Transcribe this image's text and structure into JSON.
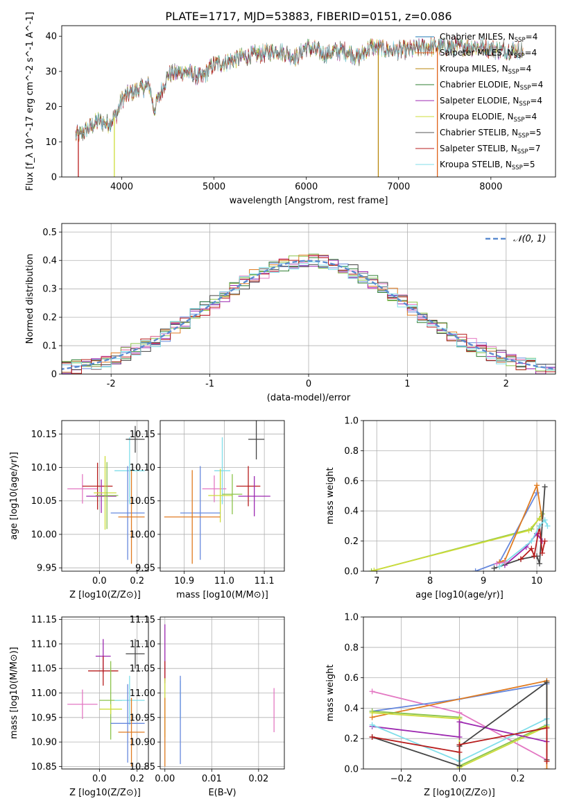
{
  "figure_title": "PLATE=1717, MJD=53883, FIBERID=0151, z=0.086",
  "colors": {
    "chabrier_miles": "#1f77b4",
    "salpeter_miles": "#e0611a",
    "kroupa_miles": "#b8860b",
    "chabrier_elodie": "#2e7d32",
    "salpeter_elodie": "#9c27b0",
    "kroupa_elodie": "#cddc39",
    "chabrier_stelib": "#555555",
    "salpeter_stelib": "#b71c1c",
    "kroupa_stelib": "#80deea",
    "pink": "#e377c2",
    "blue": "#6688dd",
    "orange": "#e07b20",
    "green": "#8bc34a",
    "gray": "#444444"
  },
  "chart_data": [
    {
      "type": "line",
      "panel": "spectrum",
      "xlabel": "wavelength [Angstrom, rest frame]",
      "ylabel": "Flux [f_λ 10^-17 erg cm^-2 s^-1 A^-1]",
      "xlim": [
        3350,
        8700
      ],
      "ylim": [
        0,
        43
      ],
      "xticks": [
        4000,
        5000,
        6000,
        7000,
        8000
      ],
      "yticks": [
        0,
        10,
        20,
        30,
        40
      ],
      "grid": false,
      "legend_position": "upper-right",
      "spectrum_envelope": {
        "x": [
          3550,
          3650,
          3750,
          3850,
          3950,
          4000,
          4100,
          4200,
          4300,
          4350,
          4500,
          4700,
          4862,
          5000,
          5175,
          5300,
          5500,
          5700,
          5893,
          6000,
          6200,
          6400,
          6563,
          6700,
          6900,
          7100,
          7300,
          7500,
          7700,
          7900,
          8100,
          8300
        ],
        "y": [
          12,
          14,
          16,
          15,
          18,
          22,
          24,
          25,
          26,
          19,
          29,
          30,
          28,
          32,
          33,
          34,
          35,
          36,
          34,
          37,
          35,
          36,
          34,
          37,
          36,
          36,
          37,
          37,
          37,
          37,
          36,
          36
        ]
      },
      "series": [
        {
          "name": "Chabrier MILES, N_SSP=4",
          "color_key": "chabrier_miles"
        },
        {
          "name": "Salpeter MILES, N_SSP=4",
          "color_key": "salpeter_miles"
        },
        {
          "name": "Kroupa MILES, N_SSP=4",
          "color_key": "kroupa_miles"
        },
        {
          "name": "Chabrier ELODIE, N_SSP=4",
          "color_key": "chabrier_elodie"
        },
        {
          "name": "Salpeter ELODIE, N_SSP=4",
          "color_key": "salpeter_elodie"
        },
        {
          "name": "Kroupa ELODIE, N_SSP=4",
          "color_key": "kroupa_elodie"
        },
        {
          "name": "Chabrier STELIB, N_SSP=5",
          "color_key": "chabrier_stelib"
        },
        {
          "name": "Salpeter STELIB, N_SSP=7",
          "color_key": "salpeter_stelib"
        },
        {
          "name": "Kroupa STELIB, N_SSP=5",
          "color_key": "kroupa_stelib"
        }
      ],
      "dropouts": [
        {
          "x": 3530,
          "color_key": "salpeter_stelib"
        },
        {
          "x": 3920,
          "color_key": "kroupa_elodie"
        },
        {
          "x": 6780,
          "color_key": "kroupa_miles"
        },
        {
          "x": 7420,
          "color_key": "salpeter_miles"
        }
      ]
    },
    {
      "type": "line",
      "panel": "residual histogram",
      "xlabel": "(data-model)/error",
      "ylabel": "Normed distribution",
      "xlim": [
        -2.5,
        2.5
      ],
      "ylim": [
        0,
        0.53
      ],
      "xticks": [
        -2,
        -1,
        0,
        1,
        2
      ],
      "yticks": [
        0.0,
        0.1,
        0.2,
        0.3,
        0.4,
        0.5
      ],
      "grid": true,
      "legend_position": "upper-right",
      "legend": "𝒩(0, 1)",
      "reference_curve": {
        "name": "N(0,1)",
        "mean": 0,
        "sigma": 1,
        "style": "dashed",
        "color": "#5b8bd0"
      },
      "histogram_bin_width": 0.1,
      "histogram_color_keys": [
        "blue",
        "orange",
        "pink",
        "chabrier_elodie",
        "salpeter_elodie",
        "green",
        "gray",
        "salpeter_stelib",
        "kroupa_stelib"
      ]
    },
    {
      "type": "scatter",
      "panel": "age vs Z",
      "xlabel": "Z [log10(Z/Z⊙)]",
      "ylabel": "age [log10(age/yr)]",
      "xlim": [
        -0.2,
        0.26
      ],
      "ylim": [
        9.945,
        10.17
      ],
      "xticks": [
        0.0,
        0.2
      ],
      "xtick_labels": [
        "0.0",
        "0.2"
      ],
      "yticks": [
        9.95,
        10.0,
        10.05,
        10.1,
        10.15
      ],
      "ytick_labels": [
        "9.95",
        "10.00",
        "10.05",
        "10.10",
        "10.15"
      ],
      "grid": true,
      "points": [
        {
          "x": -0.09,
          "xerr": 0.08,
          "y": 10.068,
          "yerr": 0.022,
          "color_key": "pink"
        },
        {
          "x": -0.01,
          "xerr": 0.08,
          "y": 10.072,
          "yerr": 0.035,
          "color_key": "salpeter_stelib"
        },
        {
          "x": 0.01,
          "xerr": 0.08,
          "y": 10.057,
          "yerr": 0.025,
          "color_key": "salpeter_elodie"
        },
        {
          "x": 0.03,
          "xerr": 0.06,
          "y": 10.062,
          "yerr": 0.055,
          "color_key": "kroupa_elodie"
        },
        {
          "x": 0.04,
          "xerr": 0.06,
          "y": 10.058,
          "yerr": 0.05,
          "color_key": "green"
        },
        {
          "x": 0.16,
          "xerr": 0.08,
          "y": 10.095,
          "yerr": 0.05,
          "color_key": "kroupa_stelib"
        },
        {
          "x": 0.15,
          "xerr": 0.09,
          "y": 10.032,
          "yerr": 0.07,
          "color_key": "blue"
        },
        {
          "x": 0.17,
          "xerr": 0.07,
          "y": 10.026,
          "yerr": 0.07,
          "color_key": "orange"
        },
        {
          "x": 0.19,
          "xerr": 0.05,
          "y": 10.142,
          "yerr": 0.02,
          "color_key": "gray"
        }
      ]
    },
    {
      "type": "scatter",
      "panel": "age vs mass",
      "xlabel": "mass [log10(M/M⊙)]",
      "ylabel": "",
      "xlim": [
        10.84,
        11.15
      ],
      "ylim": [
        9.945,
        10.17
      ],
      "xticks": [
        10.9,
        11.0,
        11.1
      ],
      "xtick_labels": [
        "10.9",
        "11.0",
        "11.1"
      ],
      "yticks": [
        9.95,
        10.0,
        10.05,
        10.1,
        10.15
      ],
      "ytick_labels": [
        "9.95",
        "10.00",
        "10.05",
        "10.10",
        "10.15"
      ],
      "grid": true,
      "points": [
        {
          "x": 10.975,
          "xerr": 0.03,
          "y": 10.068,
          "yerr": 0.02,
          "color_key": "pink"
        },
        {
          "x": 11.06,
          "xerr": 0.03,
          "y": 10.072,
          "yerr": 0.03,
          "color_key": "salpeter_stelib"
        },
        {
          "x": 11.075,
          "xerr": 0.04,
          "y": 10.057,
          "yerr": 0.03,
          "color_key": "salpeter_elodie"
        },
        {
          "x": 10.995,
          "xerr": 0.02,
          "y": 10.095,
          "yerr": 0.05,
          "color_key": "kroupa_stelib"
        },
        {
          "x": 10.99,
          "xerr": 0.03,
          "y": 10.058,
          "yerr": 0.04,
          "color_key": "kroupa_elodie"
        },
        {
          "x": 11.02,
          "xerr": 0.025,
          "y": 10.06,
          "yerr": 0.03,
          "color_key": "green"
        },
        {
          "x": 10.94,
          "xerr": 0.05,
          "y": 10.032,
          "yerr": 0.07,
          "color_key": "blue"
        },
        {
          "x": 10.92,
          "xerr": 0.07,
          "y": 10.026,
          "yerr": 0.07,
          "color_key": "orange"
        },
        {
          "x": 11.08,
          "xerr": 0.02,
          "y": 10.142,
          "yerr": 0.03,
          "color_key": "gray"
        }
      ]
    },
    {
      "type": "line",
      "panel": "mass weight vs age",
      "xlabel": "age [log10(age/yr)]",
      "ylabel": "mass weight",
      "xlim": [
        6.75,
        10.35
      ],
      "ylim": [
        0,
        1.0
      ],
      "xticks": [
        7,
        8,
        9,
        10
      ],
      "yticks": [
        0.0,
        0.2,
        0.4,
        0.6,
        0.8,
        1.0
      ],
      "ytick_labels": [
        "0.0",
        "0.2",
        "0.4",
        "0.6",
        "0.8",
        "1.0"
      ],
      "grid": true,
      "series": [
        {
          "color_key": "green",
          "x": [
            6.9,
            9.9,
            10.1
          ],
          "y": [
            0.0,
            0.28,
            0.38
          ]
        },
        {
          "color_key": "kroupa_elodie",
          "x": [
            6.95,
            9.85,
            10.05
          ],
          "y": [
            0.005,
            0.27,
            0.35
          ]
        },
        {
          "color_key": "blue",
          "x": [
            8.85,
            9.3,
            10.0
          ],
          "y": [
            0.0,
            0.06,
            0.52
          ]
        },
        {
          "color_key": "orange",
          "x": [
            9.3,
            9.4,
            10.0,
            10.1
          ],
          "y": [
            0.06,
            0.07,
            0.57,
            0.34
          ]
        },
        {
          "color_key": "salpeter_elodie",
          "x": [
            9.4,
            9.8,
            10.0,
            10.1
          ],
          "y": [
            0.04,
            0.16,
            0.25,
            0.2
          ]
        },
        {
          "color_key": "gray",
          "x": [
            9.2,
            9.7,
            10.0,
            10.05,
            10.15
          ],
          "y": [
            0.02,
            0.08,
            0.1,
            0.05,
            0.56
          ]
        },
        {
          "color_key": "salpeter_stelib",
          "x": [
            9.7,
            9.9,
            9.95,
            10.05,
            10.1,
            10.15
          ],
          "y": [
            0.08,
            0.15,
            0.1,
            0.3,
            0.12,
            0.2
          ]
        },
        {
          "color_key": "kroupa_stelib",
          "x": [
            9.3,
            9.9,
            10.05,
            10.15,
            10.2
          ],
          "y": [
            0.03,
            0.2,
            0.3,
            0.34,
            0.3
          ]
        },
        {
          "color_key": "pink",
          "x": [
            9.25,
            9.4
          ],
          "y": [
            0.05,
            0.06
          ]
        }
      ]
    },
    {
      "type": "scatter",
      "panel": "mass vs Z",
      "xlabel": "Z [log10(Z/Z⊙)]",
      "ylabel": "mass [log10(M/M⊙)]",
      "xlim": [
        -0.2,
        0.26
      ],
      "ylim": [
        10.845,
        11.155
      ],
      "xticks": [
        0.0,
        0.2
      ],
      "xtick_labels": [
        "0.0",
        "0.2"
      ],
      "yticks": [
        10.85,
        10.9,
        10.95,
        11.0,
        11.05,
        11.1,
        11.15
      ],
      "ytick_labels": [
        "10.85",
        "10.90",
        "10.95",
        "11.00",
        "11.05",
        "11.10",
        "11.15"
      ],
      "grid": true,
      "points": [
        {
          "x": -0.09,
          "xerr": 0.08,
          "y": 10.977,
          "yerr": 0.03,
          "color_key": "pink"
        },
        {
          "x": 0.02,
          "xerr": 0.04,
          "y": 11.075,
          "yerr": 0.035,
          "color_key": "salpeter_elodie"
        },
        {
          "x": 0.02,
          "xerr": 0.08,
          "y": 11.045,
          "yerr": 0.03,
          "color_key": "salpeter_stelib"
        },
        {
          "x": 0.06,
          "xerr": 0.06,
          "y": 10.985,
          "yerr": 0.08,
          "color_key": "green"
        },
        {
          "x": 0.06,
          "xerr": 0.06,
          "y": 10.967,
          "yerr": 0.01,
          "color_key": "kroupa_elodie"
        },
        {
          "x": 0.19,
          "xerr": 0.05,
          "y": 11.08,
          "yerr": 0.03,
          "color_key": "gray"
        },
        {
          "x": 0.16,
          "xerr": 0.08,
          "y": 10.985,
          "yerr": 0.05,
          "color_key": "kroupa_stelib"
        },
        {
          "x": 0.15,
          "xerr": 0.09,
          "y": 10.938,
          "yerr": 0.08,
          "color_key": "blue"
        },
        {
          "x": 0.17,
          "xerr": 0.07,
          "y": 10.92,
          "yerr": 0.07,
          "color_key": "orange"
        }
      ]
    },
    {
      "type": "scatter",
      "panel": "mass vs E(B-V)",
      "xlabel": "E(B-V)",
      "ylabel": "",
      "xlim": [
        -0.001,
        0.0255
      ],
      "ylim": [
        10.845,
        11.155
      ],
      "xticks": [
        0.0,
        0.01,
        0.02
      ],
      "xtick_labels": [
        "0.00",
        "0.01",
        "0.02"
      ],
      "yticks": [
        10.85,
        10.9,
        10.95,
        11.0,
        11.05,
        11.1,
        11.15
      ],
      "ytick_labels": [
        "10.85",
        "10.90",
        "10.95",
        "11.00",
        "11.05",
        "11.10",
        "11.15"
      ],
      "grid": true,
      "points": [
        {
          "x": 0.0,
          "y": 11.08,
          "yerr": 0.06,
          "color_key": "salpeter_elodie"
        },
        {
          "x": 0.0,
          "y": 11.045,
          "yerr": 0.02,
          "color_key": "salpeter_stelib"
        },
        {
          "x": 0.0,
          "y": 10.97,
          "yerr": 0.06,
          "color_key": "kroupa_elodie"
        },
        {
          "x": 0.0,
          "y": 10.92,
          "yerr": 0.07,
          "color_key": "orange"
        },
        {
          "x": 0.0033,
          "y": 10.985,
          "yerr": 0.04,
          "color_key": "kroupa_stelib"
        },
        {
          "x": 0.0033,
          "y": 10.945,
          "yerr": 0.09,
          "color_key": "blue"
        },
        {
          "x": 0.0233,
          "y": 10.965,
          "yerr": 0.045,
          "color_key": "pink"
        }
      ]
    },
    {
      "type": "line",
      "panel": "mass weight vs Z",
      "xlabel": "Z [log10(Z/Z⊙)]",
      "ylabel": "mass weight",
      "xlim": [
        -0.33,
        0.33
      ],
      "ylim": [
        0,
        1.0
      ],
      "xticks": [
        -0.2,
        0.0,
        0.2
      ],
      "xtick_labels": [
        "−0.2",
        "0.0",
        "0.2"
      ],
      "yticks": [
        0.0,
        0.2,
        0.4,
        0.6,
        0.8,
        1.0
      ],
      "ytick_labels": [
        "0.0",
        "0.2",
        "0.4",
        "0.6",
        "0.8",
        "1.0"
      ],
      "grid": true,
      "series": [
        {
          "color_key": "pink",
          "x": [
            -0.3,
            0.0,
            0.3
          ],
          "y": [
            0.51,
            0.37,
            0.06
          ]
        },
        {
          "color_key": "blue",
          "x": [
            -0.3,
            0.0,
            0.3
          ],
          "y": [
            0.38,
            0.46,
            0.56
          ]
        },
        {
          "color_key": "orange",
          "x": [
            -0.3,
            0.3,
            0.3
          ],
          "y": [
            0.34,
            0.58,
            0.0
          ]
        },
        {
          "color_key": "green",
          "x": [
            -0.3,
            0.0,
            0.0,
            0.3
          ],
          "y": [
            0.38,
            0.34,
            0.02,
            0.29
          ]
        },
        {
          "color_key": "kroupa_elodie",
          "x": [
            -0.3,
            0.0,
            0.0,
            0.3
          ],
          "y": [
            0.37,
            0.33,
            0.01,
            0.28
          ]
        },
        {
          "color_key": "salpeter_elodie",
          "x": [
            -0.3,
            0.0,
            0.0,
            0.3
          ],
          "y": [
            0.28,
            0.21,
            0.31,
            0.18
          ]
        },
        {
          "color_key": "kroupa_stelib",
          "x": [
            -0.3,
            0.0,
            0.3,
            0.3
          ],
          "y": [
            0.29,
            0.05,
            0.33,
            0.29
          ]
        },
        {
          "color_key": "gray",
          "x": [
            -0.3,
            0.0,
            0.0,
            0.3,
            0.3
          ],
          "y": [
            0.21,
            0.02,
            0.15,
            0.57,
            0.06
          ]
        },
        {
          "color_key": "salpeter_stelib",
          "x": [
            -0.3,
            0.0,
            0.0,
            0.3,
            0.3
          ],
          "y": [
            0.21,
            0.11,
            0.16,
            0.27,
            0.05
          ]
        }
      ]
    }
  ]
}
